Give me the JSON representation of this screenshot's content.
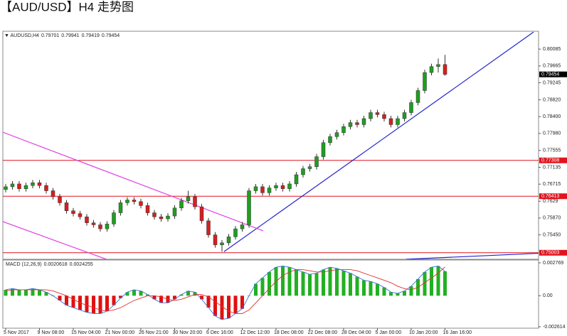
{
  "title": "【AUD/USD】H4 走势图",
  "chart_data": [
    {
      "type": "candlestick",
      "symbol": "AUDUSD,H4",
      "categories": [
        "5 Nov 2017",
        null,
        null,
        null,
        null,
        "9 Nov 08:00",
        null,
        null,
        null,
        null,
        "15 Nov 04:00",
        null,
        null,
        null,
        null,
        "21 Nov 00:00",
        null,
        null,
        null,
        null,
        "26 Nov 21:00",
        null,
        null,
        null,
        null,
        "30 Nov 20:00",
        null,
        null,
        null,
        null,
        "6 Dec 16:00",
        null,
        null,
        null,
        null,
        "12 Dec 12:00",
        null,
        null,
        null,
        null,
        "18 Dec 08:00",
        null,
        null,
        null,
        null,
        "22 Dec 08:00",
        null,
        null,
        null,
        null,
        "28 Dec 04:00",
        null,
        null,
        null,
        null,
        "5 Jan 00:00",
        null,
        null,
        null,
        null,
        "10 Jan 20:00",
        null,
        null,
        null,
        null,
        "16 Jan 16:00"
      ],
      "open": [
        0.7658,
        0.7665,
        0.7672,
        0.766,
        0.7668,
        0.7675,
        0.7668,
        0.7655,
        0.764,
        0.7625,
        0.7605,
        0.7598,
        0.759,
        0.7575,
        0.757,
        0.756,
        0.7572,
        0.76,
        0.7625,
        0.7632,
        0.7628,
        0.7618,
        0.76,
        0.759,
        0.7585,
        0.7592,
        0.7612,
        0.763,
        0.764,
        0.7615,
        0.758,
        0.7545,
        0.752,
        0.7525,
        0.754,
        0.756,
        0.757,
        0.7655,
        0.7665,
        0.765,
        0.7662,
        0.7668,
        0.766,
        0.7672,
        0.7695,
        0.771,
        0.7715,
        0.774,
        0.7775,
        0.779,
        0.78,
        0.7815,
        0.7825,
        0.782,
        0.7835,
        0.785,
        0.7845,
        0.7835,
        0.782,
        0.7835,
        0.785,
        0.7875,
        0.7905,
        0.795,
        0.7965,
        0.79701
      ],
      "high": [
        0.7672,
        0.7679,
        0.7679,
        0.7675,
        0.7682,
        0.7682,
        0.7675,
        0.7662,
        0.7647,
        0.7632,
        0.7612,
        0.7605,
        0.7597,
        0.7582,
        0.7577,
        0.7579,
        0.7607,
        0.7632,
        0.7639,
        0.7639,
        0.7635,
        0.7625,
        0.7607,
        0.7597,
        0.7599,
        0.7619,
        0.7637,
        0.7655,
        0.7647,
        0.7622,
        0.7587,
        0.7552,
        0.7532,
        0.7547,
        0.7567,
        0.7577,
        0.7662,
        0.7672,
        0.7672,
        0.7669,
        0.7675,
        0.7675,
        0.7679,
        0.7702,
        0.7717,
        0.7722,
        0.7747,
        0.7782,
        0.7797,
        0.7807,
        0.7822,
        0.7832,
        0.7832,
        0.7842,
        0.7857,
        0.7857,
        0.7852,
        0.7842,
        0.7842,
        0.7857,
        0.7882,
        0.7912,
        0.7957,
        0.7972,
        0.7985,
        0.79941
      ],
      "low": [
        0.7651,
        0.7658,
        0.7653,
        0.7653,
        0.7661,
        0.7661,
        0.7648,
        0.7633,
        0.7618,
        0.7598,
        0.7591,
        0.7583,
        0.7568,
        0.7563,
        0.7553,
        0.7553,
        0.7565,
        0.7593,
        0.7618,
        0.7621,
        0.7611,
        0.7593,
        0.7583,
        0.7578,
        0.7578,
        0.7585,
        0.7605,
        0.7623,
        0.7608,
        0.7573,
        0.7538,
        0.7513,
        0.7503,
        0.7518,
        0.7533,
        0.7553,
        0.7563,
        0.7648,
        0.7643,
        0.7643,
        0.7655,
        0.7653,
        0.7653,
        0.7665,
        0.7688,
        0.7703,
        0.7708,
        0.7733,
        0.7768,
        0.7783,
        0.7793,
        0.7808,
        0.7813,
        0.7813,
        0.7828,
        0.7838,
        0.7828,
        0.7813,
        0.7813,
        0.7828,
        0.7843,
        0.7868,
        0.7898,
        0.7943,
        0.795,
        0.79419
      ],
      "close": [
        0.7665,
        0.7672,
        0.766,
        0.7668,
        0.7675,
        0.7668,
        0.7655,
        0.764,
        0.7625,
        0.7605,
        0.7598,
        0.759,
        0.7575,
        0.757,
        0.756,
        0.7572,
        0.76,
        0.7625,
        0.7632,
        0.7628,
        0.7618,
        0.76,
        0.759,
        0.7585,
        0.7592,
        0.7612,
        0.763,
        0.764,
        0.7615,
        0.758,
        0.7545,
        0.752,
        0.7525,
        0.754,
        0.756,
        0.757,
        0.7655,
        0.7665,
        0.765,
        0.7662,
        0.7668,
        0.766,
        0.7672,
        0.7695,
        0.771,
        0.7715,
        0.774,
        0.7775,
        0.779,
        0.78,
        0.7815,
        0.7825,
        0.782,
        0.7835,
        0.785,
        0.7845,
        0.7835,
        0.782,
        0.7835,
        0.785,
        0.7875,
        0.7905,
        0.795,
        0.7965,
        0.797,
        0.79454
      ],
      "up_color": "#1f9e1f",
      "down_color": "#d81e1e",
      "current_color": "#000000",
      "xlim": [
        -0.42,
        78.84
      ],
      "ylim": [
        0.7484,
        0.8053
      ],
      "yticks": [
        0.80085,
        0.79665,
        0.79245,
        {
          "value": 0.7882,
          "label": "0.78820"
        },
        {
          "value": 0.784,
          "label": "0.78400"
        },
        {
          "value": 0.7798,
          "label": "0.77980"
        },
        0.77555,
        0.77135,
        0.76715,
        0.7629,
        {
          "value": 0.7587,
          "label": "0.75870"
        },
        {
          "value": 0.7545,
          "label": "0.75450"
        }
      ],
      "hlines": [
        {
          "value": 0.77308,
          "color": "#e0141e"
        },
        {
          "value": 0.76413,
          "color": "#e0141e"
        },
        {
          "value": 0.75003,
          "color": "#e0141e"
        }
      ],
      "trendlines": [
        {
          "color": "#2222cc",
          "x": [
            32.3,
            78.1
          ],
          "y": [
            0.7503,
            0.8051
          ]
        },
        {
          "color": "#e040e0",
          "x": [
            -0.42,
            38.1
          ],
          "y": [
            0.7801,
            0.7555
          ]
        },
        {
          "color": "#e040e0",
          "x": [
            -0.42,
            14.9
          ],
          "y": [
            0.7578,
            0.7484
          ]
        },
        {
          "color": "#2222cc",
          "x": [
            59.2,
            78.84
          ],
          "y": [
            0.7484,
            0.7499
          ]
        }
      ]
    },
    {
      "type": "macd",
      "label": "MACD (12,26,9)",
      "values": [
        0.0005,
        0.0006,
        0.0005,
        0.0005,
        0.0006,
        0.0005,
        0.0003,
        0,
        -0.0004,
        -0.0008,
        -0.001,
        -0.0012,
        -0.0014,
        -0.0015,
        -0.0015,
        -0.0013,
        -0.0008,
        -0.0002,
        0.0003,
        0.0005,
        0.0004,
        0.0001,
        -0.0003,
        -0.0006,
        -0.0006,
        -0.0003,
        0.0001,
        0.0004,
        0.0003,
        -0.0003,
        -0.001,
        -0.0017,
        -0.002,
        -0.0019,
        -0.0015,
        -0.0011,
        0,
        0.001,
        0.0015,
        0.002,
        0.0024,
        0.0025,
        0.0024,
        0.0022,
        0.002,
        0.0018,
        0.0019,
        0.0022,
        0.0024,
        0.0023,
        0.0021,
        0.0019,
        0.0016,
        0.0013,
        0.0012,
        0.001,
        0.0007,
        0.0003,
        0.0002,
        0.0004,
        0.0008,
        0.0014,
        0.002,
        0.0024,
        0.0025,
        0.0020618
      ],
      "signal": [
        0.0004,
        0.0005,
        0.0005,
        0.0005,
        0.0005,
        0.0005,
        0.0005,
        0.0004,
        0.0002,
        0,
        -0.0003,
        -0.0006,
        -0.0008,
        -0.001,
        -0.0012,
        -0.0013,
        -0.0012,
        -0.001,
        -0.0007,
        -0.0004,
        -0.0002,
        0,
        0,
        -0.0001,
        -0.0003,
        -0.0004,
        -0.0003,
        -0.0001,
        0.0001,
        0.0001,
        -0.0001,
        -0.0005,
        -0.0009,
        -0.0013,
        -0.0015,
        -0.0015,
        -0.0012,
        -0.0006,
        0,
        0.0006,
        0.0012,
        0.0017,
        0.002,
        0.0022,
        0.0022,
        0.0021,
        0.002,
        0.002,
        0.0021,
        0.0022,
        0.0022,
        0.0022,
        0.0021,
        0.0019,
        0.0017,
        0.0015,
        0.0013,
        0.0011,
        0.0008,
        0.0006,
        0.0005,
        0.0007,
        0.0011,
        0.0015,
        0.0019,
        0.0024255
      ],
      "positive_color": "#22b022",
      "negative_color": "#e01010",
      "line_color": "#3a6fd8",
      "signal_color": "#e03030",
      "ylim": [
        -0.002614,
        0.002769
      ],
      "yticks": [
        0.002769,
        {
          "value": 0,
          "label": "0.00"
        },
        -0.002614
      ]
    }
  ]
}
